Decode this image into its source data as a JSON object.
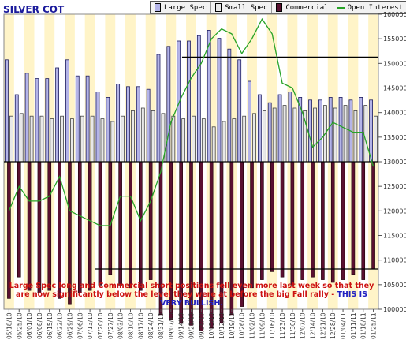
{
  "title": "SILVER COT",
  "legend": {
    "large_spec": "Large Spec",
    "small_spec": "Small Spec",
    "commercial": "Commercial",
    "open_interest": "Open Interest"
  },
  "annotation": {
    "text": "Large Spec long and Commercial short positions fell even more last week so that they are now significantly below the level they were at before the big Fall rally - ",
    "highlight": "THIS IS VERY BULLISH."
  },
  "colors": {
    "large_spec": "#b4b4e8",
    "small_spec": "#e8e8e8",
    "commercial": "#5a1030",
    "open_interest": "#27a327",
    "stripe": "#fff4c8",
    "annotation": "#cc1010",
    "highlight": "#2020c0"
  },
  "chart_data": {
    "type": "bar",
    "x_tick_labels": [
      "05/18/10",
      "05/25/10",
      "06/01/10",
      "06/08/10",
      "06/15/10",
      "06/22/10",
      "06/29/10",
      "07/06/10",
      "07/13/10",
      "07/20/10",
      "07/27/10",
      "08/03/10",
      "08/10/10",
      "08/17/10",
      "08/24/10",
      "08/31/10",
      "09/07/10",
      "09/14/10",
      "09/21/10",
      "09/28/10",
      "10/05/10",
      "10/12/10",
      "10/19/10",
      "10/26/10",
      "11/02/10",
      "11/09/10",
      "11/16/10",
      "11/23/10",
      "11/30/10",
      "12/07/10",
      "12/14/10",
      "12/21/10",
      "12/28/10",
      "01/04/11",
      "01/11/11",
      "01/18/11",
      "01/25/11"
    ],
    "right_axis": {
      "ylim": [
        100000,
        160000
      ],
      "ticks": [
        100000,
        105000,
        110000,
        115000,
        120000,
        125000,
        130000,
        135000,
        140000,
        145000,
        150000,
        155000,
        160000
      ]
    },
    "position_axis": {
      "zero": 0,
      "ylim": [
        -55000,
        55000
      ]
    },
    "series": [
      {
        "name": "Large Spec",
        "values": [
          38000,
          25000,
          33000,
          31000,
          31000,
          35000,
          38000,
          32000,
          32000,
          26000,
          24000,
          29000,
          28000,
          28000,
          27000,
          40000,
          43000,
          45000,
          45000,
          47000,
          49000,
          46000,
          42000,
          38000,
          30000,
          25000,
          22000,
          25000,
          26000,
          24000,
          23000,
          23000,
          24000,
          24000,
          23000,
          24000,
          23000
        ]
      },
      {
        "name": "Small Spec",
        "values": [
          17000,
          18000,
          17000,
          17000,
          16000,
          17000,
          16000,
          17000,
          17000,
          16000,
          15000,
          17000,
          19000,
          20000,
          19000,
          18000,
          17000,
          16000,
          17000,
          16000,
          13000,
          15000,
          16000,
          17000,
          18000,
          19000,
          20000,
          21000,
          20000,
          19000,
          20000,
          21000,
          20000,
          21000,
          19000,
          21000,
          17000
        ]
      },
      {
        "name": "Commercial",
        "values": [
          -51000,
          -43000,
          -48000,
          -49000,
          -48000,
          -51000,
          -53000,
          -49000,
          -48000,
          -46000,
          -42000,
          -46000,
          -47000,
          -48000,
          -44000,
          -57000,
          -59000,
          -60000,
          -61000,
          -63000,
          -62000,
          -60000,
          -57000,
          -54000,
          -47000,
          -44000,
          -41000,
          -43000,
          -46000,
          -44000,
          -43000,
          -44000,
          -45000,
          -44000,
          -42000,
          -44000,
          -40000
        ]
      },
      {
        "name": "Open Interest",
        "values": [
          120000,
          125000,
          122000,
          122000,
          123000,
          127000,
          120000,
          119000,
          118000,
          117000,
          117000,
          123000,
          123000,
          118000,
          122000,
          128000,
          138000,
          143000,
          147000,
          150000,
          155000,
          157000,
          156000,
          152000,
          155000,
          159000,
          156000,
          146000,
          145000,
          140000,
          133000,
          135000,
          138000,
          137000,
          136000,
          136000,
          129000
        ]
      }
    ],
    "reference_lines": {
      "commercial_level": -40000,
      "large_spec_level": 39000
    },
    "grid": true,
    "legend_position": "top"
  }
}
